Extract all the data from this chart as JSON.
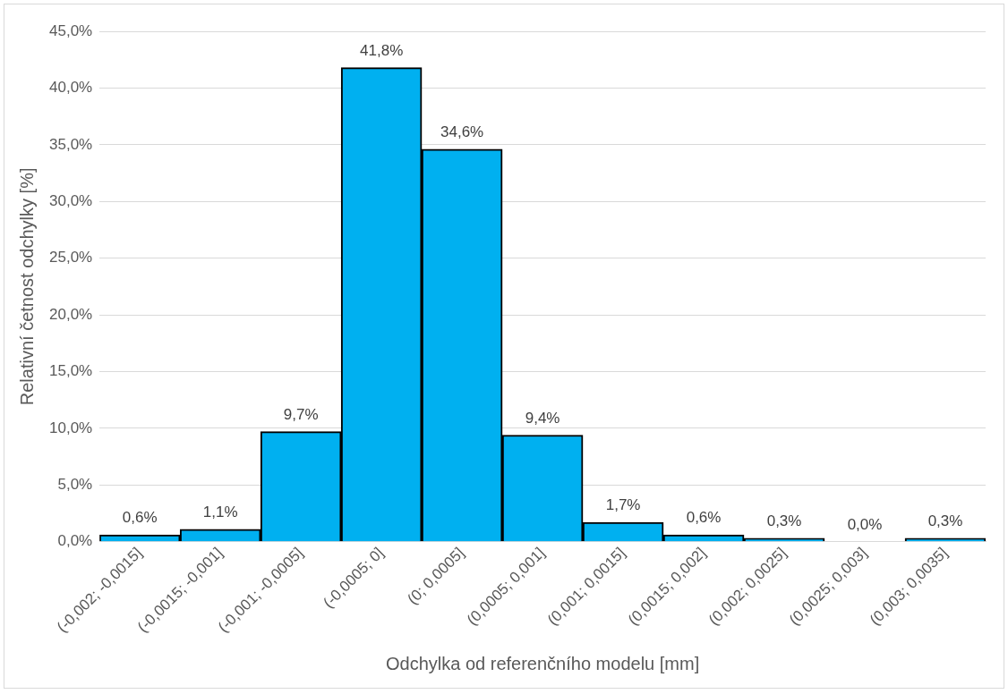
{
  "chart_data": {
    "type": "bar",
    "xlabel": "Odchylka od referenčního modelu [mm]",
    "ylabel": "Relativní četnost odchylky [%]",
    "categories": [
      "(-0,002; -0,0015]",
      "(-0,0015; -0,001]",
      "(-0,001; -0,0005]",
      "(-0,0005; 0]",
      "(0; 0,0005]",
      "(0,0005; 0,001]",
      "(0,001; 0,0015]",
      "(0,0015; 0,002]",
      "(0,002; 0,0025]",
      "(0,0025; 0,003]",
      "(0,003; 0,0035]"
    ],
    "values": [
      0.6,
      1.1,
      9.7,
      41.8,
      34.6,
      9.4,
      1.7,
      0.6,
      0.3,
      0.0,
      0.3
    ],
    "value_labels": [
      "0,6%",
      "1,1%",
      "9,7%",
      "41,8%",
      "34,6%",
      "9,4%",
      "1,7%",
      "0,6%",
      "0,3%",
      "0,0%",
      "0,3%"
    ],
    "color": "#00b0f0",
    "ylim": [
      0,
      45
    ],
    "yticks": [
      {
        "value": 0,
        "label": "0,0%"
      },
      {
        "value": 5,
        "label": "5,0%"
      },
      {
        "value": 10,
        "label": "10,0%"
      },
      {
        "value": 15,
        "label": "15,0%"
      },
      {
        "value": 20,
        "label": "20,0%"
      },
      {
        "value": 25,
        "label": "25,0%"
      },
      {
        "value": 30,
        "label": "30,0%"
      },
      {
        "value": 35,
        "label": "35,0%"
      },
      {
        "value": 40,
        "label": "40,0%"
      },
      {
        "value": 45,
        "label": "45,0%"
      }
    ],
    "grid": "y"
  }
}
